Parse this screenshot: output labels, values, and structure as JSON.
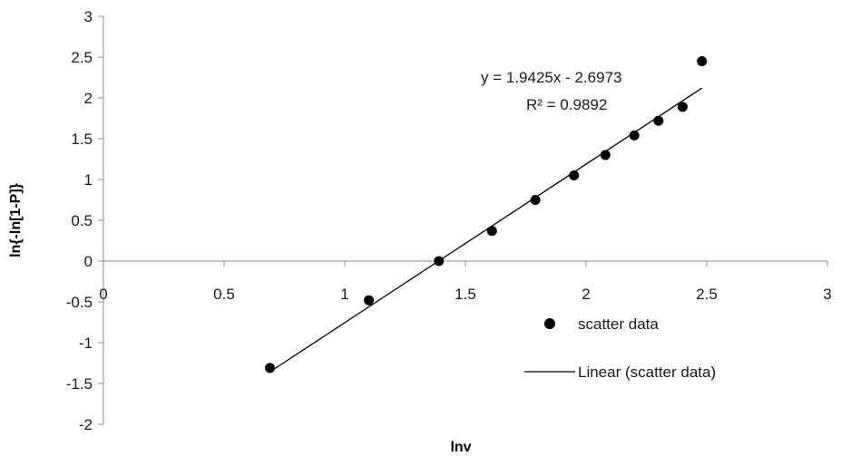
{
  "chart_data": {
    "type": "scatter",
    "title": "",
    "xlabel": "lnv",
    "ylabel": "ln{-ln[1-P]}",
    "xlim": [
      0,
      3
    ],
    "ylim": [
      -2,
      3
    ],
    "x_ticks": [
      "0",
      "0.5",
      "1",
      "1.5",
      "2",
      "2.5",
      "3"
    ],
    "y_ticks": [
      "3",
      "2.5",
      "2",
      "1.5",
      "1",
      "0.5",
      "0",
      "-0.5",
      "-1",
      "-1.5",
      "-2"
    ],
    "grid": false,
    "legend_position": "right",
    "series": [
      {
        "name": "scatter data",
        "kind": "scatter",
        "color": "#000000",
        "points": [
          {
            "x": 0.69,
            "y": -1.31
          },
          {
            "x": 1.1,
            "y": -0.48
          },
          {
            "x": 1.39,
            "y": 0.0
          },
          {
            "x": 1.61,
            "y": 0.37
          },
          {
            "x": 1.79,
            "y": 0.75
          },
          {
            "x": 1.95,
            "y": 1.05
          },
          {
            "x": 2.08,
            "y": 1.3
          },
          {
            "x": 2.2,
            "y": 1.54
          },
          {
            "x": 2.3,
            "y": 1.72
          },
          {
            "x": 2.4,
            "y": 1.89
          },
          {
            "x": 2.48,
            "y": 2.45
          }
        ]
      },
      {
        "name": "Linear (scatter data)",
        "kind": "trendline",
        "color": "#000000",
        "slope": 1.9425,
        "intercept": -2.6973,
        "x_range": [
          0.69,
          2.48
        ]
      }
    ],
    "annotations": {
      "equation": "y = 1.9425x - 2.6973",
      "r_squared": "R² = 0.9892"
    }
  }
}
